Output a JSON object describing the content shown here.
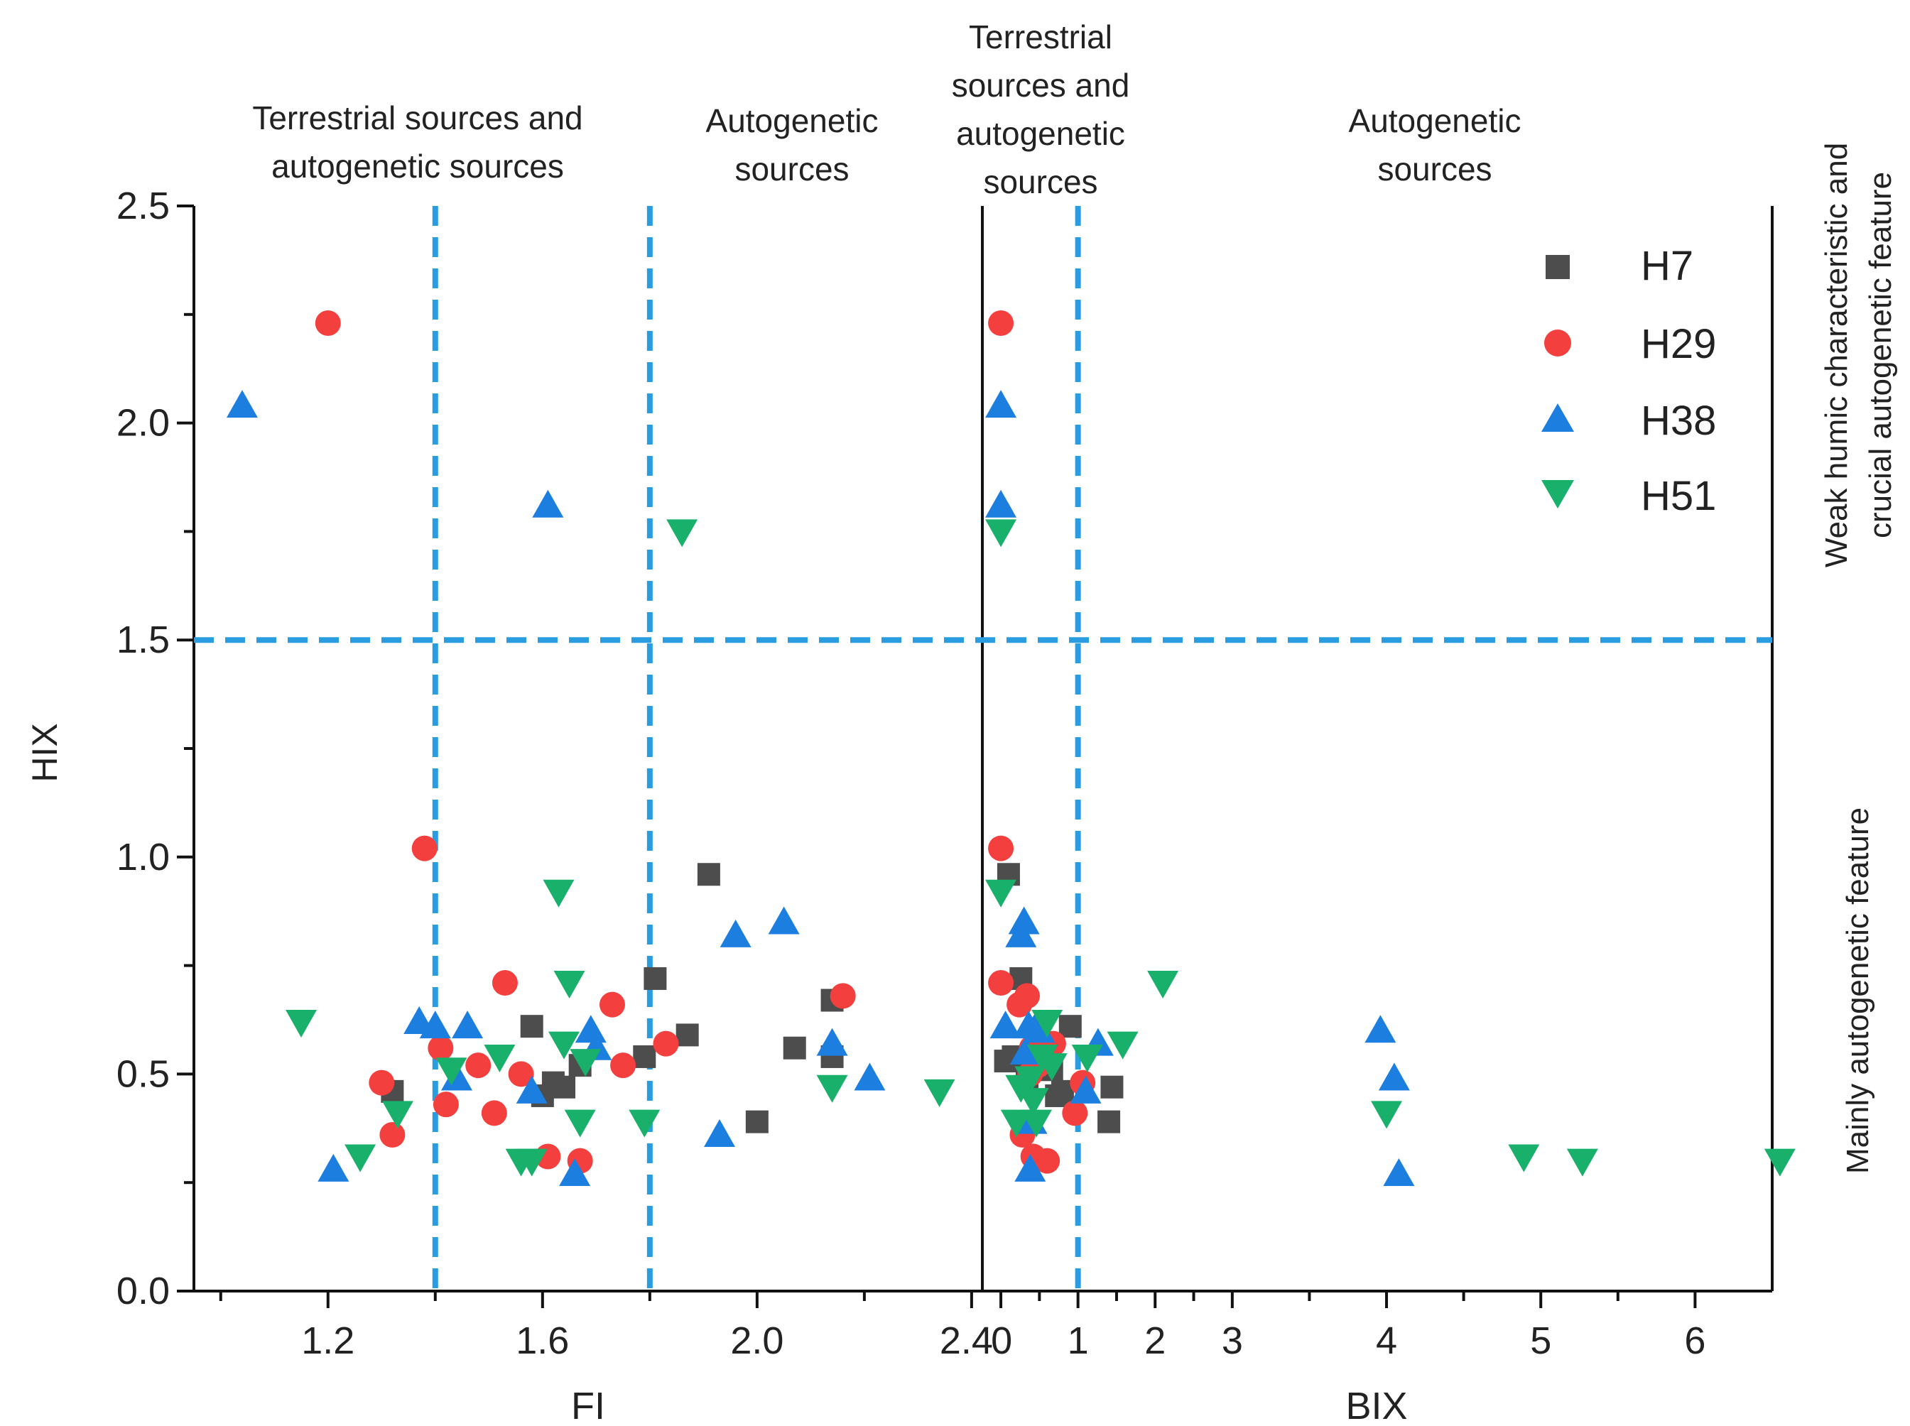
{
  "chart_data": {
    "type": "scatter",
    "ylabel": "HIX",
    "ylim": [
      0,
      2.5
    ],
    "yticks": [
      "0.0",
      "0.5",
      "1.0",
      "1.5",
      "2.0",
      "2.5"
    ],
    "hline": 1.5,
    "legend": {
      "placement": "top-right",
      "entries": [
        "H7",
        "H29",
        "H38",
        "H51"
      ]
    },
    "colors": {
      "H7": "#4d4d4d",
      "H29": "#f43f3f",
      "H38": "#1c7fe0",
      "H51": "#19b06b",
      "guide": "#2a9de0"
    },
    "right_labels": {
      "upper_line1": "Weak humic characteristic and",
      "upper_line2": "crucial autogenetic feature",
      "lower": "Mainly autogenetic feature"
    },
    "panels": [
      {
        "name": "FI",
        "xlabel": "FI",
        "xlim": [
          0.95,
          2.42
        ],
        "xticks": [
          "1.2",
          "1.6",
          "2.0",
          "2.4"
        ],
        "tickvals": [
          1.2,
          1.6,
          2.0,
          2.4
        ],
        "vlines": [
          1.4,
          1.8
        ],
        "region_labels": [
          {
            "line1": "Terrestrial sources and",
            "line2": "autogenetic sources"
          },
          {
            "line1": "Autogenetic",
            "line2": "sources"
          }
        ],
        "series": [
          {
            "name": "H7",
            "marker": "square",
            "x": [
              1.32,
              1.58,
              1.6,
              1.62,
              1.64,
              1.67,
              1.79,
              1.81,
              1.87,
              1.91,
              2.0,
              2.07,
              2.14,
              2.14
            ],
            "y": [
              0.46,
              0.61,
              0.45,
              0.48,
              0.47,
              0.52,
              0.54,
              0.72,
              0.59,
              0.96,
              0.39,
              0.56,
              0.54,
              0.67
            ]
          },
          {
            "name": "H29",
            "marker": "circle",
            "x": [
              1.2,
              1.3,
              1.32,
              1.38,
              1.41,
              1.42,
              1.48,
              1.51,
              1.53,
              1.56,
              1.61,
              1.67,
              1.73,
              1.75,
              1.83,
              2.16
            ],
            "y": [
              2.23,
              0.48,
              0.36,
              1.02,
              0.56,
              0.43,
              0.52,
              0.41,
              0.71,
              0.5,
              0.31,
              0.3,
              0.66,
              0.52,
              0.57,
              0.68
            ]
          },
          {
            "name": "H38",
            "marker": "triangle-up",
            "x": [
              1.04,
              1.21,
              1.37,
              1.4,
              1.44,
              1.46,
              1.58,
              1.61,
              1.66,
              1.69,
              1.7,
              1.93,
              1.96,
              2.05,
              2.14,
              2.21
            ],
            "y": [
              2.04,
              0.28,
              0.62,
              0.61,
              0.49,
              0.61,
              0.46,
              1.81,
              0.27,
              0.6,
              0.56,
              0.36,
              0.82,
              0.85,
              0.57,
              0.49
            ]
          },
          {
            "name": "H51",
            "marker": "triangle-down",
            "x": [
              1.15,
              1.26,
              1.33,
              1.43,
              1.52,
              1.56,
              1.58,
              1.63,
              1.64,
              1.65,
              1.67,
              1.68,
              1.79,
              1.86,
              2.14,
              2.34
            ],
            "y": [
              0.62,
              0.31,
              0.41,
              0.51,
              0.54,
              0.3,
              0.3,
              0.92,
              0.57,
              0.71,
              0.39,
              0.53,
              0.39,
              1.75,
              0.47,
              0.46
            ]
          }
        ]
      },
      {
        "name": "BIX",
        "xlabel": "BIX",
        "xlim": [
          -0.12,
          5.0
        ],
        "xticks": [
          "0",
          "1",
          "2",
          "3",
          "4",
          "5",
          "6"
        ],
        "tickvals": [
          0,
          0.5,
          1.0,
          1.5,
          2.5,
          3.5,
          4.5
        ],
        "vlines": [
          0.5
        ],
        "region_labels": [
          {
            "line1": "Terrestrial",
            "line2": "sources and",
            "line3": "autogenetic",
            "line4": "sources"
          },
          {
            "line1": "Autogenetic",
            "line2": "sources"
          }
        ],
        "series": [
          {
            "name": "H7",
            "marker": "square",
            "x": [
              0.03,
              0.05,
              0.08,
              0.13,
              0.17,
              0.33,
              0.36,
              0.4,
              0.45,
              0.7,
              0.72
            ],
            "y": [
              0.53,
              0.96,
              0.54,
              0.72,
              0.49,
              0.51,
              0.45,
              0.46,
              0.61,
              0.39,
              0.47
            ]
          },
          {
            "name": "H29",
            "marker": "circle",
            "x": [
              0.0,
              0.0,
              0.0,
              0.12,
              0.14,
              0.17,
              0.19,
              0.2,
              0.21,
              0.24,
              0.3,
              0.34,
              0.48,
              0.53
            ],
            "y": [
              2.23,
              1.02,
              0.71,
              0.66,
              0.36,
              0.68,
              0.5,
              0.56,
              0.31,
              0.52,
              0.3,
              0.57,
              0.41,
              0.48
            ]
          },
          {
            "name": "H38",
            "marker": "triangle-up",
            "x": [
              0.0,
              0.0,
              0.03,
              0.13,
              0.15,
              0.16,
              0.18,
              0.19,
              0.2,
              0.23,
              0.25,
              0.55,
              0.63,
              2.46,
              2.55,
              2.58
            ],
            "y": [
              2.04,
              1.81,
              0.61,
              0.82,
              0.85,
              0.55,
              0.61,
              0.28,
              0.39,
              0.61,
              0.6,
              0.46,
              0.57,
              0.6,
              0.49,
              0.27
            ]
          },
          {
            "name": "H51",
            "marker": "triangle-down",
            "x": [
              0.0,
              0.0,
              0.1,
              0.13,
              0.19,
              0.21,
              0.23,
              0.27,
              0.3,
              0.33,
              0.56,
              0.79,
              1.05,
              2.5,
              3.39,
              3.77,
              5.05
            ],
            "y": [
              1.75,
              0.92,
              0.39,
              0.47,
              0.49,
              0.44,
              0.39,
              0.54,
              0.62,
              0.52,
              0.54,
              0.57,
              0.71,
              0.41,
              0.31,
              0.3,
              0.3
            ]
          }
        ]
      }
    ]
  }
}
